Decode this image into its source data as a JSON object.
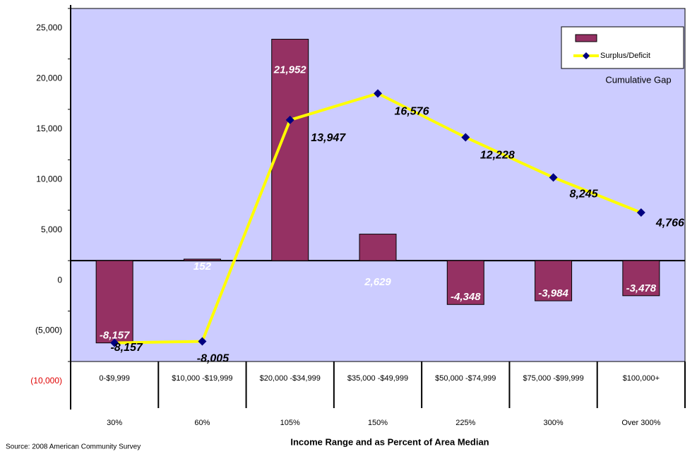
{
  "chart_data": {
    "type": "bar",
    "categories": [
      "0-$9,999",
      "$10,000 -$19,999",
      "$20,000 -$34,999",
      "$35,000 -$49,999",
      "$50,000 -$74,999",
      "$75,000 -$99,999",
      "$100,000+"
    ],
    "category_percents": [
      "30%",
      "60%",
      "105%",
      "150%",
      "225%",
      "300%",
      "Over 300%"
    ],
    "x_label": "Income Range and as Percent of Area Median",
    "source": "Source: 2008 American Community Survey",
    "annotation": "Cumulative Gap",
    "series": [
      {
        "color": "#953163",
        "values": [
          -8157,
          152,
          21952,
          2629,
          -4348,
          -3984,
          -3478
        ],
        "value_labels": [
          "-8,157",
          "152",
          "21,952",
          "2,629",
          "-4,348",
          "-3,984",
          "-3,478"
        ]
      },
      {
        "name": "Surplus/Deficit",
        "type": "line",
        "color": "#ffff00",
        "marker_color": "#000080",
        "values": [
          -8157,
          -8005,
          13947,
          16576,
          12228,
          8245,
          4766
        ],
        "value_labels": [
          "-8,157",
          "-8,005",
          "13,947",
          "16,576",
          "12,228",
          "8,245",
          "4,766"
        ]
      }
    ],
    "ylim": [
      -10000,
      25000
    ],
    "yticks": [
      {
        "value": -10000,
        "label": "(10,000)"
      },
      {
        "value": -5000,
        "label": "(5,000)"
      },
      0,
      {
        "value": 5000,
        "label": "5,000"
      },
      {
        "value": 10000,
        "label": "10,000"
      },
      {
        "value": 15000,
        "label": "15,000"
      },
      {
        "value": 20000,
        "label": "20,000"
      },
      {
        "value": 25000,
        "label": "25,000"
      }
    ],
    "negative_tick_color": "#e00000",
    "plot_background": "#ccccff",
    "legend": "top-right"
  }
}
